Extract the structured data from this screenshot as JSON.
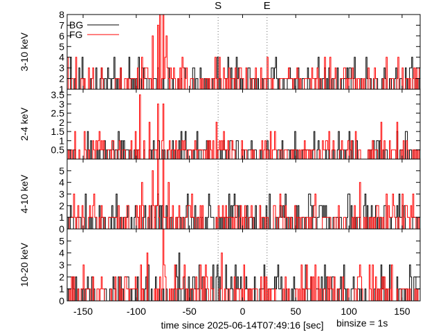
{
  "chart_data": {
    "type": "line",
    "style": "step histogram",
    "xlabel": "time since 2025-06-14T07:49:16 [sec]",
    "binsize_label": "binsize = 1s",
    "xlim": [
      -165,
      167
    ],
    "xticks": [
      -150,
      -100,
      -50,
      0,
      50,
      100,
      150
    ],
    "markers": [
      {
        "label": "S",
        "x": -23
      },
      {
        "label": "E",
        "x": 23
      }
    ],
    "legend": {
      "placement": "top-left of first panel",
      "entries": [
        {
          "label": "BG",
          "color": "#000000"
        },
        {
          "label": "FG",
          "color": "#ff0000"
        }
      ]
    },
    "series_colors": {
      "BG": "#000000",
      "FG": "#ff0000"
    },
    "panels": [
      {
        "ylabel": "3-10 keV",
        "ylim": [
          1,
          8
        ],
        "yticks": [
          1,
          2,
          3,
          4,
          5,
          6,
          7,
          8
        ],
        "FG": [
          {
            "x": -95,
            "y": 4
          },
          {
            "x": -90,
            "y": 3
          },
          {
            "x": -85,
            "y": 6
          },
          {
            "x": -80,
            "y": 7
          },
          {
            "x": -78,
            "y": 8
          },
          {
            "x": -75,
            "y": 8
          },
          {
            "x": -72,
            "y": 6
          },
          {
            "x": -68,
            "y": 3
          },
          {
            "x": 135,
            "y": 4
          },
          {
            "x": 150,
            "y": 3
          }
        ],
        "BG": [
          {
            "x": -130,
            "y": 2
          },
          {
            "x": 30,
            "y": 3
          },
          {
            "x": 120,
            "y": 2
          }
        ]
      },
      {
        "ylabel": "2-4 keV",
        "ylim": [
          0,
          3.8
        ],
        "yticks": [
          0.5,
          1,
          1.5,
          2,
          2.5,
          3,
          3.5
        ],
        "FG": [
          {
            "x": -97,
            "y": 3.5
          },
          {
            "x": -88,
            "y": 2
          },
          {
            "x": -80,
            "y": 3
          },
          {
            "x": -75,
            "y": 3
          },
          {
            "x": -55,
            "y": 1
          },
          {
            "x": -25,
            "y": 2
          },
          {
            "x": 130,
            "y": 2
          },
          {
            "x": 145,
            "y": 2
          }
        ],
        "BG": [
          {
            "x": -100,
            "y": 0.5
          },
          {
            "x": 0,
            "y": 0.5
          }
        ]
      },
      {
        "ylabel": "4-10 keV",
        "ylim": [
          0,
          6
        ],
        "yticks": [
          0,
          1,
          2,
          3,
          4,
          5
        ],
        "FG": [
          {
            "x": -95,
            "y": 4
          },
          {
            "x": -85,
            "y": 5
          },
          {
            "x": -80,
            "y": 6
          },
          {
            "x": -75,
            "y": 6
          },
          {
            "x": -70,
            "y": 4
          },
          {
            "x": 35,
            "y": 3
          },
          {
            "x": 110,
            "y": 4
          },
          {
            "x": 135,
            "y": 3
          }
        ],
        "BG": [
          {
            "x": 40,
            "y": 3
          },
          {
            "x": 100,
            "y": 3
          }
        ]
      },
      {
        "ylabel": "10-20 keV",
        "ylim": [
          0,
          6
        ],
        "yticks": [
          0,
          1,
          2,
          3,
          4,
          5
        ],
        "FG": [
          {
            "x": -150,
            "y": 3
          },
          {
            "x": -90,
            "y": 4
          },
          {
            "x": -75,
            "y": 6
          },
          {
            "x": -35,
            "y": 3
          },
          {
            "x": -20,
            "y": 4
          },
          {
            "x": 55,
            "y": 3
          },
          {
            "x": 110,
            "y": 3
          },
          {
            "x": 140,
            "y": 3
          }
        ],
        "BG": [
          {
            "x": -60,
            "y": 4
          },
          {
            "x": 20,
            "y": 3
          },
          {
            "x": 95,
            "y": 3
          }
        ]
      }
    ]
  }
}
